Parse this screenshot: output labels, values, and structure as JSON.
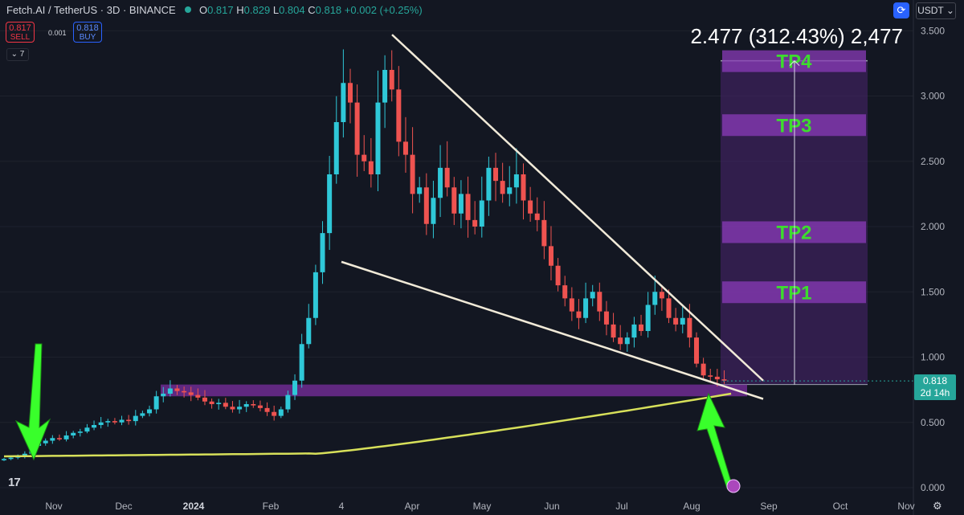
{
  "header": {
    "symbol": "Fetch.AI / TetherUS · 3D · BINANCE",
    "open_label": "O",
    "open": "0.817",
    "high_label": "H",
    "high": "0.829",
    "low_label": "L",
    "low": "0.804",
    "close_label": "C",
    "close": "0.818",
    "change": "+0.002 (+0.25%)"
  },
  "trade": {
    "sell_price": "0.817",
    "sell_label": "SELL",
    "spread": "0.001",
    "buy_price": "0.818",
    "buy_label": "BUY"
  },
  "indicator_count": "7",
  "currency": "USDT",
  "measure_label": "2.477 (312.43%) 2,477",
  "last_price": {
    "value": "0.818",
    "countdown": "2d 14h"
  },
  "colors": {
    "background": "#131722",
    "up": "#2fc8d8",
    "down": "#ef5350",
    "ma": "#d7e05a",
    "zone": "#7b2fa0",
    "tp_box": "#6a2a8e",
    "arrow": "#39ff2b",
    "wedge": "#f1ead8"
  },
  "targets": [
    {
      "label": "TP4",
      "price": 3.27
    },
    {
      "label": "TP3",
      "price": 2.78
    },
    {
      "label": "TP2",
      "price": 1.96
    },
    {
      "label": "TP1",
      "price": 1.5
    }
  ],
  "chart_data": {
    "type": "candlestick",
    "ylim": [
      0,
      3.6
    ],
    "y_ticks": [
      "0.000",
      "0.500",
      "1.000",
      "1.500",
      "2.000",
      "2.500",
      "3.000",
      "3.500"
    ],
    "x_ticks": [
      "Nov",
      "Dec",
      "2024",
      "Feb",
      "4",
      "Apr",
      "May",
      "Jun",
      "Jul",
      "Aug",
      "Sep",
      "Oct",
      "Nov"
    ],
    "support_zone": [
      0.7,
      0.79
    ],
    "target_range": [
      0.79,
      3.27
    ],
    "wedge_upper": [
      [
        3.47,
        "Mar"
      ],
      [
        0.82,
        "late Aug"
      ]
    ],
    "wedge_lower": [
      [
        1.73,
        "early Mar"
      ],
      [
        0.7,
        "late Aug"
      ]
    ],
    "candle_closes": [
      0.22,
      0.23,
      0.24,
      0.26,
      0.32,
      0.34,
      0.36,
      0.38,
      0.37,
      0.4,
      0.42,
      0.43,
      0.46,
      0.48,
      0.5,
      0.51,
      0.5,
      0.52,
      0.51,
      0.55,
      0.57,
      0.6,
      0.7,
      0.72,
      0.76,
      0.74,
      0.73,
      0.71,
      0.69,
      0.66,
      0.64,
      0.65,
      0.62,
      0.6,
      0.62,
      0.64,
      0.63,
      0.61,
      0.58,
      0.55,
      0.6,
      0.71,
      0.82,
      1.1,
      1.3,
      1.65,
      1.95,
      2.4,
      2.8,
      3.1,
      2.95,
      2.55,
      2.5,
      2.4,
      2.95,
      3.2,
      3.05,
      2.65,
      2.55,
      2.25,
      2.3,
      2.02,
      2.22,
      2.45,
      2.3,
      2.1,
      2.25,
      2.05,
      2.0,
      2.2,
      2.45,
      2.35,
      2.25,
      2.3,
      2.4,
      2.2,
      2.1,
      2.05,
      1.85,
      1.7,
      1.55,
      1.45,
      1.35,
      1.3,
      1.45,
      1.5,
      1.35,
      1.25,
      1.15,
      1.1,
      1.15,
      1.25,
      1.2,
      1.4,
      1.5,
      1.45,
      1.3,
      1.25,
      1.3,
      1.15,
      0.95,
      0.86,
      0.85,
      0.83,
      0.82
    ]
  }
}
